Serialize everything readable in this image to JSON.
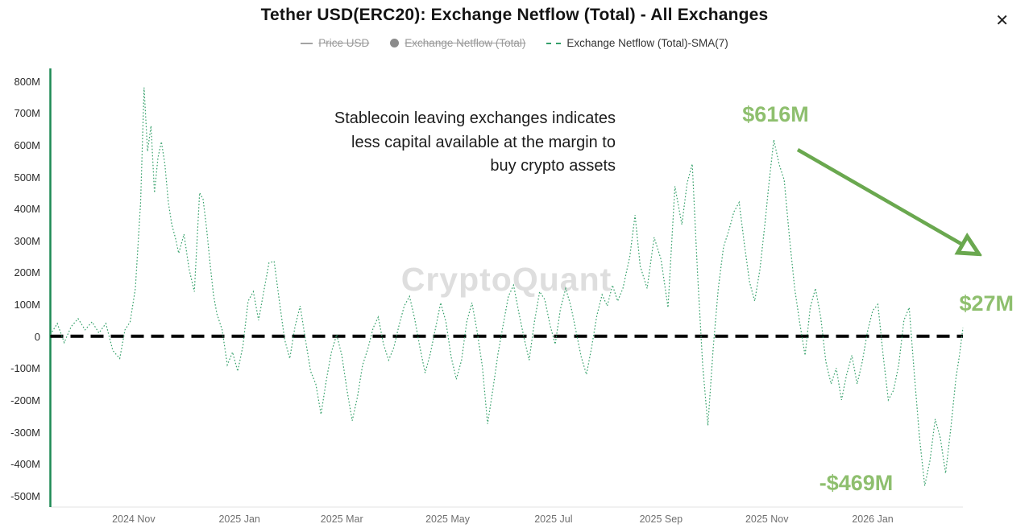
{
  "header": {
    "title": "Tether USD(ERC20): Exchange Netflow (Total) - All Exchanges",
    "close_icon": "✕"
  },
  "legend": {
    "items": [
      {
        "label": "Price USD",
        "state": "disabled",
        "swatch": "line",
        "color": "#a3a3a3"
      },
      {
        "label": "Exchange Netflow (Total)",
        "state": "disabled",
        "swatch": "dot",
        "color": "#8b8b8b"
      },
      {
        "label": "Exchange Netflow (Total)-SMA(7)",
        "state": "active",
        "swatch": "dashed-line",
        "color": "#35a06a"
      }
    ]
  },
  "colors": {
    "series": "#35a06a",
    "annotation": "#8ebf6e",
    "arrow": "#6aa84f",
    "axis": "#1e8a55",
    "zero_line": "#000000",
    "baseline": "#e3e3e3"
  },
  "chart_data": {
    "type": "line",
    "title": "Tether USD(ERC20): Exchange Netflow (Total) - All Exchanges",
    "xlabel": "",
    "ylabel": "",
    "legend_position": "top",
    "grid": false,
    "zero_line_value": 0,
    "watermark": "CryptoQuant",
    "x_range": [
      "2024-09-14",
      "2026-02-22"
    ],
    "ylim": [
      -536,
      840
    ],
    "y_ticks": [
      {
        "v": 800,
        "label": "800M"
      },
      {
        "v": 700,
        "label": "700M"
      },
      {
        "v": 600,
        "label": "600M"
      },
      {
        "v": 500,
        "label": "500M"
      },
      {
        "v": 400,
        "label": "400M"
      },
      {
        "v": 300,
        "label": "300M"
      },
      {
        "v": 200,
        "label": "200M"
      },
      {
        "v": 100,
        "label": "100M"
      },
      {
        "v": 0,
        "label": "0"
      },
      {
        "v": -100,
        "label": "-100M"
      },
      {
        "v": -200,
        "label": "-200M"
      },
      {
        "v": -300,
        "label": "-300M"
      },
      {
        "v": -400,
        "label": "-400M"
      },
      {
        "v": -500,
        "label": "-500M"
      }
    ],
    "x_ticks": [
      {
        "date": "2024-11-01",
        "label": "2024 Nov"
      },
      {
        "date": "2025-01-01",
        "label": "2025 Jan"
      },
      {
        "date": "2025-03-01",
        "label": "2025 Mar"
      },
      {
        "date": "2025-05-01",
        "label": "2025 May"
      },
      {
        "date": "2025-07-01",
        "label": "2025 Jul"
      },
      {
        "date": "2025-09-01",
        "label": "2025 Sep"
      },
      {
        "date": "2025-11-01",
        "label": "2025 Nov"
      },
      {
        "date": "2026-01-01",
        "label": "2026 Jan"
      }
    ],
    "disabled_series": [
      "Price USD",
      "Exchange Netflow (Total)"
    ],
    "annotations": {
      "note_lines": [
        "Stablecoin leaving exchanges indicates",
        "less capital available at the margin to",
        "buy crypto assets"
      ],
      "peak": "$616M",
      "latest": "$27M",
      "trough": "-$469M"
    },
    "series": [
      {
        "name": "Exchange Netflow (Total)-SMA(7)",
        "style": "dotted",
        "color": "#35a06a",
        "unit": "USD millions",
        "points": [
          [
            "2024-09-14",
            5
          ],
          [
            "2024-09-18",
            40
          ],
          [
            "2024-09-22",
            -20
          ],
          [
            "2024-09-26",
            30
          ],
          [
            "2024-09-30",
            55
          ],
          [
            "2024-10-04",
            20
          ],
          [
            "2024-10-08",
            45
          ],
          [
            "2024-10-12",
            10
          ],
          [
            "2024-10-16",
            40
          ],
          [
            "2024-10-20",
            -45
          ],
          [
            "2024-10-24",
            -70
          ],
          [
            "2024-10-27",
            20
          ],
          [
            "2024-10-30",
            45
          ],
          [
            "2024-11-02",
            150
          ],
          [
            "2024-11-05",
            420
          ],
          [
            "2024-11-07",
            780
          ],
          [
            "2024-11-09",
            580
          ],
          [
            "2024-11-11",
            660
          ],
          [
            "2024-11-13",
            450
          ],
          [
            "2024-11-15",
            560
          ],
          [
            "2024-11-17",
            610
          ],
          [
            "2024-11-19",
            540
          ],
          [
            "2024-11-21",
            420
          ],
          [
            "2024-11-23",
            350
          ],
          [
            "2024-11-25",
            310
          ],
          [
            "2024-11-27",
            260
          ],
          [
            "2024-11-30",
            320
          ],
          [
            "2024-12-03",
            210
          ],
          [
            "2024-12-06",
            140
          ],
          [
            "2024-12-09",
            450
          ],
          [
            "2024-12-11",
            430
          ],
          [
            "2024-12-13",
            340
          ],
          [
            "2024-12-15",
            230
          ],
          [
            "2024-12-17",
            130
          ],
          [
            "2024-12-19",
            70
          ],
          [
            "2024-12-22",
            20
          ],
          [
            "2024-12-25",
            -90
          ],
          [
            "2024-12-28",
            -50
          ],
          [
            "2024-12-31",
            -110
          ],
          [
            "2025-01-03",
            -30
          ],
          [
            "2025-01-06",
            110
          ],
          [
            "2025-01-09",
            140
          ],
          [
            "2025-01-12",
            50
          ],
          [
            "2025-01-15",
            140
          ],
          [
            "2025-01-18",
            230
          ],
          [
            "2025-01-21",
            235
          ],
          [
            "2025-01-24",
            110
          ],
          [
            "2025-01-27",
            -10
          ],
          [
            "2025-01-30",
            -70
          ],
          [
            "2025-02-02",
            30
          ],
          [
            "2025-02-05",
            95
          ],
          [
            "2025-02-08",
            -10
          ],
          [
            "2025-02-11",
            -110
          ],
          [
            "2025-02-14",
            -150
          ],
          [
            "2025-02-17",
            -245
          ],
          [
            "2025-02-20",
            -140
          ],
          [
            "2025-02-23",
            -50
          ],
          [
            "2025-02-26",
            5
          ],
          [
            "2025-03-01",
            -60
          ],
          [
            "2025-03-04",
            -170
          ],
          [
            "2025-03-07",
            -265
          ],
          [
            "2025-03-10",
            -190
          ],
          [
            "2025-03-13",
            -90
          ],
          [
            "2025-03-16",
            -40
          ],
          [
            "2025-03-19",
            25
          ],
          [
            "2025-03-22",
            60
          ],
          [
            "2025-03-25",
            -25
          ],
          [
            "2025-03-28",
            -75
          ],
          [
            "2025-03-31",
            -35
          ],
          [
            "2025-04-03",
            35
          ],
          [
            "2025-04-06",
            95
          ],
          [
            "2025-04-09",
            125
          ],
          [
            "2025-04-12",
            55
          ],
          [
            "2025-04-15",
            -35
          ],
          [
            "2025-04-18",
            -115
          ],
          [
            "2025-04-21",
            -55
          ],
          [
            "2025-04-24",
            25
          ],
          [
            "2025-04-27",
            105
          ],
          [
            "2025-04-30",
            45
          ],
          [
            "2025-05-03",
            -65
          ],
          [
            "2025-05-06",
            -135
          ],
          [
            "2025-05-09",
            -75
          ],
          [
            "2025-05-12",
            45
          ],
          [
            "2025-05-15",
            105
          ],
          [
            "2025-05-18",
            15
          ],
          [
            "2025-05-21",
            -95
          ],
          [
            "2025-05-24",
            -275
          ],
          [
            "2025-05-27",
            -170
          ],
          [
            "2025-05-30",
            -55
          ],
          [
            "2025-06-02",
            35
          ],
          [
            "2025-06-05",
            125
          ],
          [
            "2025-06-08",
            160
          ],
          [
            "2025-06-11",
            75
          ],
          [
            "2025-06-14",
            -5
          ],
          [
            "2025-06-17",
            -75
          ],
          [
            "2025-06-20",
            45
          ],
          [
            "2025-06-23",
            140
          ],
          [
            "2025-06-26",
            115
          ],
          [
            "2025-06-29",
            35
          ],
          [
            "2025-07-02",
            -25
          ],
          [
            "2025-07-05",
            85
          ],
          [
            "2025-07-08",
            150
          ],
          [
            "2025-07-11",
            95
          ],
          [
            "2025-07-14",
            15
          ],
          [
            "2025-07-17",
            -65
          ],
          [
            "2025-07-20",
            -120
          ],
          [
            "2025-07-23",
            -35
          ],
          [
            "2025-07-26",
            65
          ],
          [
            "2025-07-29",
            130
          ],
          [
            "2025-08-01",
            95
          ],
          [
            "2025-08-04",
            160
          ],
          [
            "2025-08-07",
            110
          ],
          [
            "2025-08-10",
            150
          ],
          [
            "2025-08-14",
            250
          ],
          [
            "2025-08-17",
            380
          ],
          [
            "2025-08-20",
            220
          ],
          [
            "2025-08-24",
            150
          ],
          [
            "2025-08-28",
            310
          ],
          [
            "2025-09-01",
            240
          ],
          [
            "2025-09-05",
            90
          ],
          [
            "2025-09-09",
            470
          ],
          [
            "2025-09-13",
            350
          ],
          [
            "2025-09-16",
            480
          ],
          [
            "2025-09-19",
            540
          ],
          [
            "2025-09-22",
            200
          ],
          [
            "2025-09-25",
            -90
          ],
          [
            "2025-09-28",
            -280
          ],
          [
            "2025-10-01",
            -40
          ],
          [
            "2025-10-04",
            150
          ],
          [
            "2025-10-07",
            280
          ],
          [
            "2025-10-10",
            330
          ],
          [
            "2025-10-13",
            390
          ],
          [
            "2025-10-16",
            420
          ],
          [
            "2025-10-19",
            290
          ],
          [
            "2025-10-22",
            170
          ],
          [
            "2025-10-25",
            110
          ],
          [
            "2025-10-28",
            210
          ],
          [
            "2025-10-31",
            360
          ],
          [
            "2025-11-02",
            470
          ],
          [
            "2025-11-05",
            616
          ],
          [
            "2025-11-08",
            540
          ],
          [
            "2025-11-11",
            490
          ],
          [
            "2025-11-14",
            310
          ],
          [
            "2025-11-17",
            150
          ],
          [
            "2025-11-20",
            40
          ],
          [
            "2025-11-23",
            -60
          ],
          [
            "2025-11-26",
            90
          ],
          [
            "2025-11-29",
            150
          ],
          [
            "2025-12-02",
            60
          ],
          [
            "2025-12-05",
            -80
          ],
          [
            "2025-12-08",
            -150
          ],
          [
            "2025-12-11",
            -100
          ],
          [
            "2025-12-14",
            -200
          ],
          [
            "2025-12-17",
            -120
          ],
          [
            "2025-12-20",
            -60
          ],
          [
            "2025-12-23",
            -150
          ],
          [
            "2025-12-26",
            -80
          ],
          [
            "2025-12-29",
            15
          ],
          [
            "2026-01-01",
            80
          ],
          [
            "2026-01-04",
            100
          ],
          [
            "2026-01-07",
            -60
          ],
          [
            "2026-01-10",
            -200
          ],
          [
            "2026-01-13",
            -170
          ],
          [
            "2026-01-16",
            -90
          ],
          [
            "2026-01-19",
            50
          ],
          [
            "2026-01-22",
            90
          ],
          [
            "2026-01-25",
            -120
          ],
          [
            "2026-01-28",
            -320
          ],
          [
            "2026-01-31",
            -469
          ],
          [
            "2026-02-03",
            -390
          ],
          [
            "2026-02-06",
            -260
          ],
          [
            "2026-02-09",
            -320
          ],
          [
            "2026-02-12",
            -430
          ],
          [
            "2026-02-15",
            -290
          ],
          [
            "2026-02-18",
            -130
          ],
          [
            "2026-02-20",
            -60
          ],
          [
            "2026-02-22",
            27
          ]
        ]
      }
    ]
  }
}
